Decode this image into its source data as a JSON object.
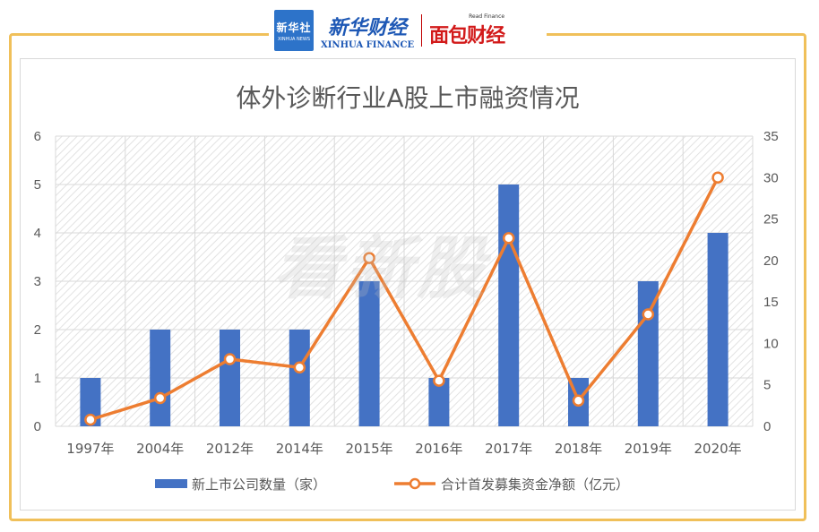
{
  "header": {
    "logo_xinhua_cn": "新华社",
    "logo_xinhua_en": "XINHUA NEWS",
    "brand_cn": "新华财经",
    "brand_en": "XINHUA FINANCE",
    "read_finance_en": "Read Finance",
    "read_finance_cn": "面包财经"
  },
  "watermark": "看新股",
  "colors": {
    "bar": "#4472c4",
    "line": "#ed7d31",
    "frame": "#f0c05a"
  },
  "chart_data": {
    "type": "bar",
    "title": "体外诊断行业A股上市融资情况",
    "categories": [
      "1997年",
      "2004年",
      "2012年",
      "2014年",
      "2015年",
      "2016年",
      "2017年",
      "2018年",
      "2019年",
      "2020年"
    ],
    "series": [
      {
        "name": "新上市公司数量（家）",
        "type": "bar",
        "axis": "left",
        "values": [
          1,
          2,
          2,
          2,
          3,
          1,
          5,
          1,
          3,
          4
        ]
      },
      {
        "name": "合计首发募集资金净额（亿元）",
        "type": "line",
        "axis": "right",
        "values": [
          0.8,
          3.4,
          8.1,
          7.1,
          20.3,
          5.5,
          22.7,
          3.1,
          13.5,
          30.0
        ]
      }
    ],
    "y_left": {
      "min": 0,
      "max": 6,
      "ticks": [
        "0",
        "1",
        "2",
        "3",
        "4",
        "5",
        "6"
      ]
    },
    "y_right": {
      "min": 0,
      "max": 35,
      "ticks": [
        "0",
        "5",
        "10",
        "15",
        "20",
        "25",
        "30",
        "35"
      ]
    },
    "legend_position": "bottom",
    "grid": true
  }
}
